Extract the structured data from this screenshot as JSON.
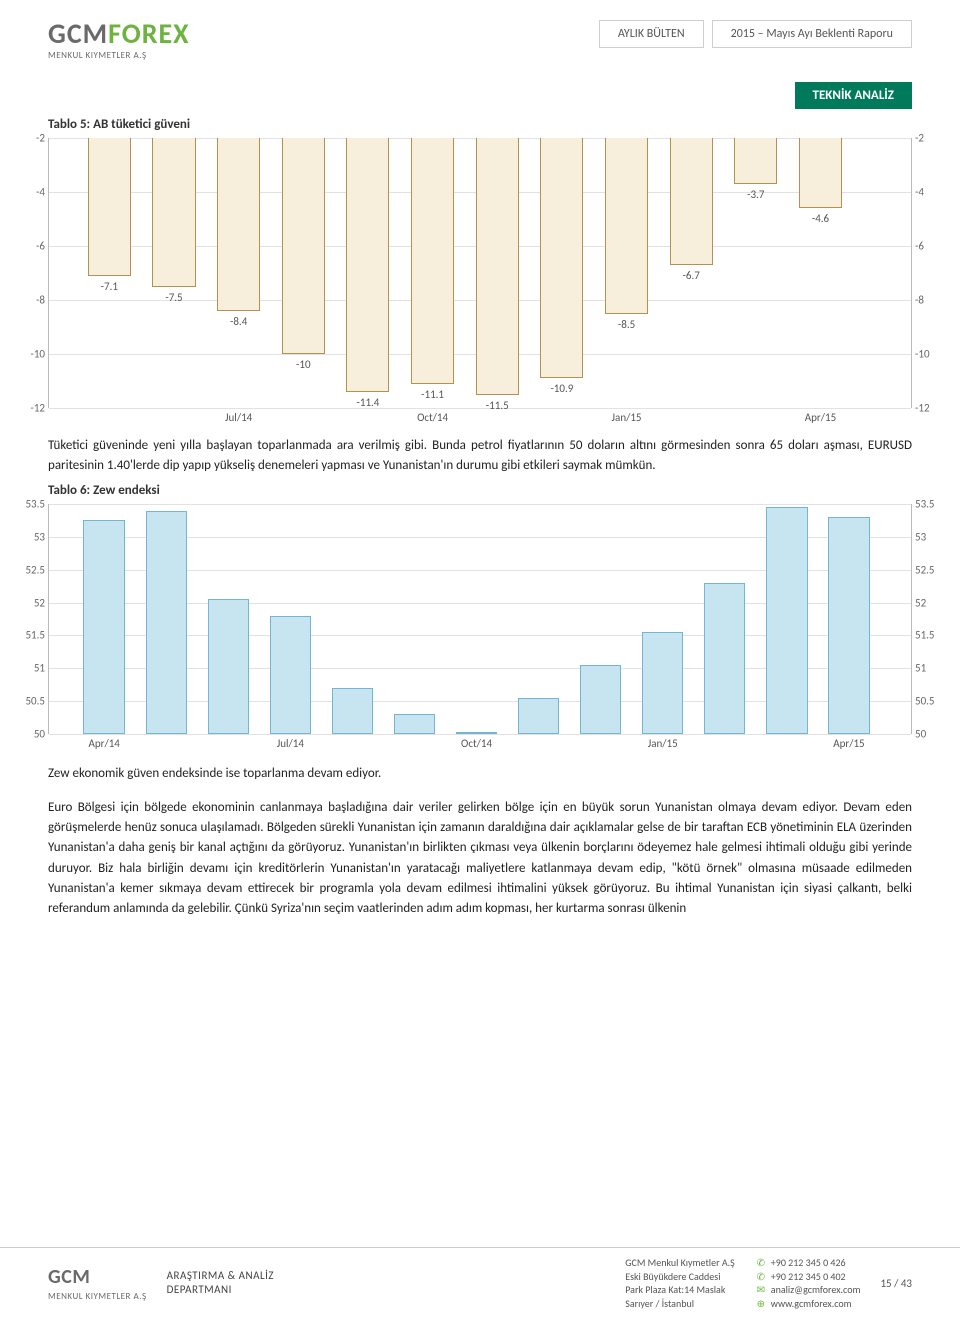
{
  "header": {
    "logo_main_a": "GCM",
    "logo_main_b": "FOREX",
    "logo_sub": "MENKUL KIYMETLER A.Ş",
    "tab1": "AYLIK BÜLTEN",
    "tab2": "2015 – Mayıs Ayı Beklenti Raporu"
  },
  "badge": "TEKNİK ANALİZ",
  "section1_title": "Tablo 5: AB tüketici güveni",
  "chart1": {
    "y_min": -12,
    "y_max": -2,
    "y_ticks": [
      -2,
      -4,
      -6,
      -8,
      -10,
      -12
    ],
    "grid_color": "#e2e2e2",
    "bar_fill": "#f7efdc",
    "bar_border": "#b1924f",
    "bar_width_pct": 5.0,
    "bars": [
      {
        "pos_pct": 4.5,
        "value": -7.1,
        "label": "-7.1"
      },
      {
        "pos_pct": 12.0,
        "value": -7.5,
        "label": "-7.5"
      },
      {
        "pos_pct": 19.5,
        "value": -8.4,
        "label": "-8.4"
      },
      {
        "pos_pct": 27.0,
        "value": -10.0,
        "label": "-10"
      },
      {
        "pos_pct": 34.5,
        "value": -11.4,
        "label": "-11.4"
      },
      {
        "pos_pct": 42.0,
        "value": -11.1,
        "label": "-11.1"
      },
      {
        "pos_pct": 49.5,
        "value": -11.5,
        "label": "-11.5"
      },
      {
        "pos_pct": 57.0,
        "value": -10.9,
        "label": "-10.9"
      },
      {
        "pos_pct": 64.5,
        "value": -8.5,
        "label": "-8.5"
      },
      {
        "pos_pct": 72.0,
        "value": -6.7,
        "label": "-6.7"
      },
      {
        "pos_pct": 79.5,
        "value": -3.7,
        "label": "-3.7"
      },
      {
        "pos_pct": 87.0,
        "value": -4.6,
        "label": "-4.6"
      }
    ],
    "x_ticks": [
      {
        "pos_pct": 19.5,
        "label": "Jul/14"
      },
      {
        "pos_pct": 42.0,
        "label": "Oct/14"
      },
      {
        "pos_pct": 64.5,
        "label": "Jan/15"
      },
      {
        "pos_pct": 87.0,
        "label": "Apr/15"
      }
    ]
  },
  "para1": "Tüketici güveninde yeni yılla başlayan toparlanmada ara verilmiş gibi. Bunda petrol fiyatlarının 50 doların altını görmesinden sonra 65 doları aşması, EURUSD paritesinin 1.40'lerde dip yapıp yükseliş denemeleri yapması ve Yunanistan'ın durumu gibi etkileri saymak mümkün.",
  "section2_title": "Tablo 6: Zew endeksi",
  "chart2": {
    "y_min": 50,
    "y_max": 53.5,
    "y_ticks": [
      53.5,
      53,
      52.5,
      52,
      51.5,
      51,
      50.5,
      50
    ],
    "grid_color": "#e2e2e2",
    "bar_fill": "#c7e5f0",
    "bar_border": "#74b6d2",
    "bar_width_pct": 4.8,
    "bars": [
      {
        "pos_pct": 4.0,
        "value": 53.25
      },
      {
        "pos_pct": 11.2,
        "value": 53.4
      },
      {
        "pos_pct": 18.4,
        "value": 52.05
      },
      {
        "pos_pct": 25.6,
        "value": 51.8
      },
      {
        "pos_pct": 32.8,
        "value": 50.7
      },
      {
        "pos_pct": 40.0,
        "value": 50.3
      },
      {
        "pos_pct": 47.2,
        "value": 50.0
      },
      {
        "pos_pct": 54.4,
        "value": 50.55
      },
      {
        "pos_pct": 61.6,
        "value": 51.05
      },
      {
        "pos_pct": 68.8,
        "value": 51.55
      },
      {
        "pos_pct": 76.0,
        "value": 52.3
      },
      {
        "pos_pct": 83.2,
        "value": 53.45
      },
      {
        "pos_pct": 90.4,
        "value": 53.3
      }
    ],
    "x_ticks": [
      {
        "pos_pct": 4.0,
        "label": "Apr/14"
      },
      {
        "pos_pct": 25.6,
        "label": "Jul/14"
      },
      {
        "pos_pct": 47.2,
        "label": "Oct/14"
      },
      {
        "pos_pct": 68.8,
        "label": "Jan/15"
      },
      {
        "pos_pct": 90.4,
        "label": "Apr/15"
      }
    ]
  },
  "para2a": "Zew ekonomik güven endeksinde ise toparlanma devam ediyor.",
  "para2b": "Euro Bölgesi için bölgede ekonominin canlanmaya başladığına dair veriler gelirken bölge için en büyük sorun Yunanistan olmaya devam ediyor. Devam eden görüşmelerde henüz sonuca ulaşılamadı. Bölgeden sürekli Yunanistan için zamanın daraldığına dair açıklamalar gelse de bir taraftan ECB yönetiminin ELA üzerinden Yunanistan'a daha geniş bir kanal açtığını da görüyoruz. Yunanistan'ın birlikten çıkması veya ülkenin borçlarını ödeyemez hale gelmesi ihtimali olduğu gibi yerinde duruyor. Biz hala birliğin devamı için kreditörlerin Yunanistan'ın yaratacağı maliyetlere katlanmaya devam edip, \"kötü örnek\" olmasına müsaade edilmeden Yunanistan'a kemer sıkmaya devam ettirecek bir programla yola devam edilmesi ihtimalini yüksek görüyoruz. Bu ihtimal Yunanistan için siyasi çalkantı, belki referandum anlamında da gelebilir. Çünkü Syriza'nın seçim vaatlerinden adım adım kopması, her kurtarma sonrası ülkenin",
  "footer": {
    "logo_a": "GCM",
    "logo_sub": "MENKUL KIYMETLER A.Ş",
    "dept1": "ARAŞTIRMA & ANALİZ",
    "dept2": "DEPARTMANI",
    "addr1": "GCM Menkul Kıymetler A.Ş",
    "addr2": "Eski Büyükdere Caddesi",
    "addr3": "Park Plaza Kat:14 Maslak",
    "addr4": "Sarıyer / İstanbul",
    "phone1": "+90 212 345 0 426",
    "phone2": "+90 212 345 0 402",
    "email": "analiz@gcmforex.com",
    "web": "www.gcmforex.com",
    "pagenum": "15 / 43"
  }
}
